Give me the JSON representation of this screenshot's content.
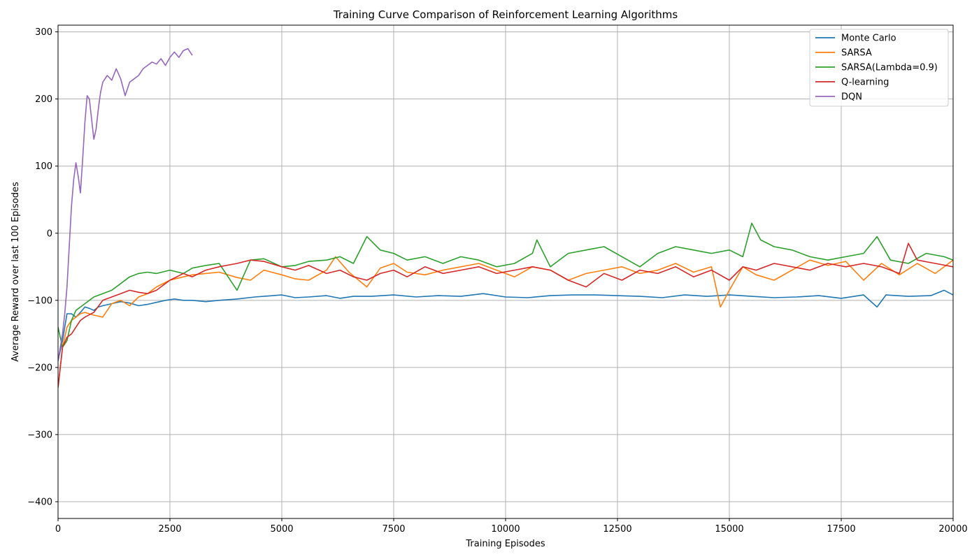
{
  "chart_data": {
    "type": "line",
    "title": "Training Curve Comparison of Reinforcement Learning Algorithms",
    "xlabel": "Training Episodes",
    "ylabel": "Average Reward over last 100 Episodes",
    "xlim": [
      0,
      20000
    ],
    "ylim": [
      -425,
      310
    ],
    "xticks": [
      0,
      2500,
      5000,
      7500,
      10000,
      12500,
      15000,
      17500,
      20000
    ],
    "xtick_labels": [
      "0",
      "2500",
      "5000",
      "7500",
      "10000",
      "12500",
      "15000",
      "17500",
      "20000"
    ],
    "yticks": [
      -400,
      -300,
      -200,
      -100,
      0,
      100,
      200,
      300
    ],
    "ytick_labels": [
      "−400",
      "−300",
      "−200",
      "−100",
      "0",
      "100",
      "200",
      "300"
    ],
    "grid": true,
    "legend_position": "top-right",
    "series": [
      {
        "name": "Monte Carlo",
        "color": "#1f77b4",
        "x": [
          0,
          100,
          200,
          300,
          400,
          500,
          600,
          700,
          800,
          900,
          1000,
          1200,
          1400,
          1600,
          1800,
          2000,
          2200,
          2400,
          2600,
          2800,
          3000,
          3300,
          3600,
          4000,
          4400,
          4800,
          5000,
          5300,
          5600,
          6000,
          6300,
          6600,
          7000,
          7500,
          8000,
          8500,
          9000,
          9500,
          10000,
          10500,
          11000,
          11500,
          12000,
          12500,
          13000,
          13500,
          14000,
          14500,
          15000,
          15500,
          16000,
          16500,
          17000,
          17500,
          18000,
          18300,
          18500,
          19000,
          19500,
          19800,
          20000
        ],
        "y": [
          -190,
          -160,
          -120,
          -120,
          -125,
          -118,
          -110,
          -112,
          -115,
          -110,
          -108,
          -105,
          -102,
          -104,
          -108,
          -106,
          -103,
          -100,
          -98,
          -100,
          -100,
          -102,
          -100,
          -98,
          -95,
          -93,
          -92,
          -96,
          -95,
          -93,
          -97,
          -94,
          -94,
          -92,
          -95,
          -93,
          -94,
          -90,
          -95,
          -96,
          -93,
          -92,
          -92,
          -93,
          -94,
          -96,
          -92,
          -94,
          -92,
          -94,
          -96,
          -95,
          -93,
          -97,
          -92,
          -110,
          -92,
          -94,
          -93,
          -85,
          -92
        ]
      },
      {
        "name": "SARSA",
        "color": "#ff7f0e",
        "x": [
          0,
          100,
          200,
          300,
          400,
          500,
          600,
          800,
          1000,
          1200,
          1400,
          1600,
          1800,
          2000,
          2200,
          2500,
          2800,
          3000,
          3300,
          3600,
          4000,
          4300,
          4600,
          5000,
          5300,
          5600,
          6000,
          6200,
          6500,
          6900,
          7200,
          7500,
          7800,
          8200,
          8600,
          9000,
          9400,
          9800,
          10200,
          10600,
          11000,
          11400,
          11800,
          12200,
          12600,
          13000,
          13400,
          13800,
          14200,
          14600,
          14800,
          15000,
          15300,
          15600,
          16000,
          16400,
          16800,
          17200,
          17600,
          18000,
          18400,
          18800,
          19200,
          19600,
          20000
        ],
        "y": [
          -230,
          -170,
          -140,
          -130,
          -125,
          -120,
          -118,
          -122,
          -125,
          -105,
          -100,
          -108,
          -95,
          -90,
          -80,
          -70,
          -65,
          -62,
          -60,
          -58,
          -66,
          -70,
          -55,
          -62,
          -68,
          -70,
          -55,
          -35,
          -58,
          -80,
          -52,
          -45,
          -58,
          -62,
          -55,
          -50,
          -45,
          -55,
          -65,
          -50,
          -55,
          -70,
          -60,
          -55,
          -50,
          -60,
          -55,
          -45,
          -58,
          -50,
          -110,
          -85,
          -50,
          -62,
          -70,
          -55,
          -40,
          -48,
          -42,
          -70,
          -45,
          -62,
          -45,
          -60,
          -40
        ]
      },
      {
        "name": "SARSA(Lambda=0.9)",
        "color": "#2ca02c",
        "x": [
          0,
          100,
          200,
          300,
          400,
          500,
          600,
          800,
          1000,
          1200,
          1400,
          1600,
          1800,
          2000,
          2200,
          2500,
          2800,
          3000,
          3300,
          3600,
          4000,
          4300,
          4600,
          5000,
          5300,
          5600,
          6000,
          6300,
          6600,
          6900,
          7200,
          7500,
          7800,
          8200,
          8600,
          9000,
          9400,
          9800,
          10200,
          10600,
          10700,
          11000,
          11400,
          11800,
          12200,
          12600,
          13000,
          13400,
          13800,
          14200,
          14600,
          15000,
          15300,
          15500,
          15700,
          16000,
          16400,
          16800,
          17200,
          17600,
          18000,
          18300,
          18600,
          19000,
          19400,
          19800,
          20000
        ],
        "y": [
          -140,
          -170,
          -160,
          -130,
          -115,
          -110,
          -105,
          -95,
          -90,
          -85,
          -75,
          -65,
          -60,
          -58,
          -60,
          -55,
          -60,
          -52,
          -48,
          -45,
          -85,
          -40,
          -38,
          -50,
          -48,
          -42,
          -40,
          -35,
          -45,
          -5,
          -25,
          -30,
          -40,
          -35,
          -45,
          -35,
          -40,
          -50,
          -45,
          -30,
          -10,
          -50,
          -30,
          -25,
          -20,
          -35,
          -50,
          -30,
          -20,
          -25,
          -30,
          -25,
          -35,
          15,
          -10,
          -20,
          -25,
          -35,
          -40,
          -35,
          -30,
          -5,
          -40,
          -45,
          -30,
          -35,
          -40
        ]
      },
      {
        "name": "Q-learning",
        "color": "#d62728",
        "x": [
          0,
          100,
          200,
          300,
          400,
          500,
          600,
          800,
          1000,
          1200,
          1400,
          1600,
          1800,
          2000,
          2200,
          2500,
          2800,
          3000,
          3300,
          3600,
          4000,
          4300,
          4600,
          5000,
          5300,
          5600,
          6000,
          6300,
          6600,
          6900,
          7200,
          7500,
          7800,
          8200,
          8600,
          9000,
          9400,
          9800,
          10200,
          10600,
          11000,
          11400,
          11800,
          12200,
          12600,
          13000,
          13400,
          13800,
          14200,
          14600,
          15000,
          15300,
          15600,
          16000,
          16400,
          16800,
          17200,
          17600,
          18000,
          18400,
          18800,
          19000,
          19200,
          19600,
          20000
        ],
        "y": [
          -230,
          -170,
          -155,
          -150,
          -140,
          -130,
          -125,
          -118,
          -100,
          -95,
          -90,
          -85,
          -88,
          -90,
          -85,
          -70,
          -60,
          -65,
          -55,
          -50,
          -45,
          -40,
          -42,
          -50,
          -55,
          -48,
          -60,
          -55,
          -65,
          -70,
          -60,
          -55,
          -65,
          -50,
          -60,
          -55,
          -50,
          -60,
          -55,
          -50,
          -55,
          -70,
          -80,
          -60,
          -70,
          -55,
          -60,
          -50,
          -65,
          -55,
          -70,
          -50,
          -55,
          -45,
          -50,
          -55,
          -45,
          -50,
          -45,
          -50,
          -60,
          -15,
          -40,
          -45,
          -50
        ]
      },
      {
        "name": "DQN",
        "color": "#9467bd",
        "x": [
          0,
          50,
          100,
          150,
          200,
          250,
          300,
          350,
          400,
          450,
          500,
          550,
          600,
          650,
          700,
          750,
          800,
          850,
          900,
          950,
          1000,
          1100,
          1200,
          1300,
          1400,
          1500,
          1600,
          1700,
          1800,
          1900,
          2000,
          2100,
          2200,
          2300,
          2400,
          2500,
          2600,
          2700,
          2800,
          2900,
          3000
        ],
        "y": [
          -190,
          -170,
          -150,
          -120,
          -80,
          -20,
          40,
          80,
          105,
          85,
          60,
          110,
          165,
          205,
          200,
          170,
          140,
          155,
          185,
          210,
          225,
          235,
          228,
          245,
          230,
          205,
          225,
          230,
          235,
          245,
          250,
          255,
          252,
          260,
          250,
          262,
          270,
          262,
          272,
          275,
          265
        ]
      }
    ]
  }
}
